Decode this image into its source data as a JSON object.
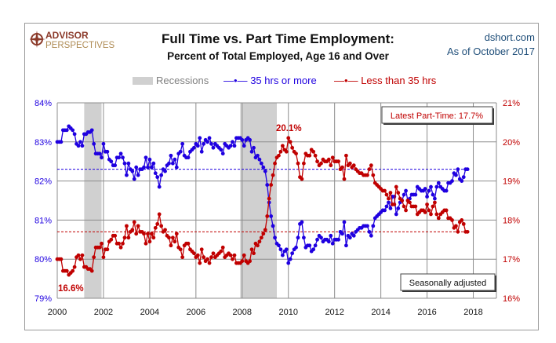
{
  "header": {
    "title": "Full Time vs. Part Time Employment:",
    "subtitle": "Percent of Total Employed, Age 16 and Over",
    "site": "dshort.com",
    "as_of": "As of October 2017",
    "logo_text": [
      "ADVISOR",
      "PERSPECTIVES"
    ]
  },
  "colors": {
    "full_time": "#1f00e0",
    "part_time": "#c00000",
    "recession": "#d0d0d0",
    "grid": "#8c8c8c"
  },
  "chart_data": {
    "type": "line",
    "x_start": "2000-01",
    "frequency": "monthly",
    "x_end": "2017-10",
    "xlim": [
      2000,
      2019
    ],
    "x_ticks": [
      "2000",
      "2002",
      "2004",
      "2006",
      "2008",
      "2010",
      "2012",
      "2014",
      "2016",
      "2018"
    ],
    "y_left": {
      "lim": [
        79,
        84
      ],
      "ticks": [
        "79%",
        "80%",
        "81%",
        "82%",
        "83%",
        "84%"
      ]
    },
    "y_right": {
      "lim": [
        16,
        21
      ],
      "ticks": [
        "16%",
        "17%",
        "18%",
        "19%",
        "20%",
        "21%"
      ]
    },
    "grid": true,
    "legend": {
      "placement": "top",
      "items": [
        "Recessions",
        "35 hrs or more",
        "Less than 35 hrs"
      ]
    },
    "recessions": [
      [
        "2001-03",
        "2001-11"
      ],
      [
        "2007-12",
        "2009-06"
      ]
    ],
    "series": [
      {
        "name": "35 hrs or more",
        "axis": "left",
        "values": [
          83.0,
          83.0,
          83.0,
          83.3,
          83.3,
          83.3,
          83.4,
          83.35,
          83.3,
          83.2,
          82.95,
          82.9,
          83.0,
          82.9,
          83.2,
          83.2,
          83.25,
          83.25,
          83.3,
          82.95,
          82.7,
          82.7,
          82.7,
          82.6,
          82.95,
          82.75,
          82.75,
          82.55,
          82.5,
          82.4,
          82.4,
          82.6,
          82.6,
          82.7,
          82.6,
          82.45,
          82.15,
          82.45,
          82.3,
          82.25,
          82.05,
          82.35,
          82.15,
          82.3,
          82.3,
          82.35,
          82.6,
          82.35,
          82.55,
          82.35,
          82.45,
          82.2,
          82.1,
          81.85,
          82.15,
          82.3,
          82.25,
          82.4,
          82.45,
          82.65,
          82.45,
          82.55,
          82.35,
          82.7,
          82.75,
          82.95,
          82.65,
          82.6,
          82.6,
          82.75,
          82.8,
          82.85,
          82.95,
          82.9,
          83.1,
          82.75,
          82.95,
          83.05,
          83.0,
          83.1,
          82.95,
          82.85,
          82.95,
          82.9,
          82.85,
          82.8,
          82.7,
          82.95,
          82.9,
          82.85,
          82.9,
          83.0,
          82.9,
          83.1,
          83.1,
          83.1,
          83.05,
          82.9,
          83.05,
          83.1,
          83.05,
          82.75,
          82.85,
          82.6,
          82.65,
          82.55,
          82.45,
          82.35,
          82.25,
          81.9,
          81.45,
          81.1,
          80.85,
          80.55,
          80.4,
          80.35,
          80.25,
          80.1,
          80.2,
          80.25,
          79.9,
          80.0,
          80.15,
          80.25,
          80.3,
          80.55,
          80.9,
          80.95,
          80.55,
          80.3,
          80.35,
          80.35,
          80.2,
          80.25,
          80.35,
          80.5,
          80.6,
          80.55,
          80.45,
          80.5,
          80.5,
          80.45,
          80.6,
          80.4,
          80.5,
          80.5,
          80.5,
          80.7,
          80.65,
          80.95,
          80.35,
          80.6,
          80.55,
          80.65,
          80.6,
          80.7,
          80.75,
          80.8,
          80.8,
          80.85,
          80.85,
          80.85,
          80.7,
          80.6,
          80.85,
          81.05,
          81.1,
          81.15,
          81.2,
          81.25,
          81.25,
          81.35,
          81.45,
          81.3,
          81.6,
          81.6,
          81.15,
          81.3,
          81.45,
          81.5,
          81.65,
          81.75,
          81.5,
          81.55,
          81.65,
          81.65,
          81.65,
          81.85,
          81.8,
          81.75,
          81.75,
          81.8,
          81.6,
          81.75,
          81.85,
          81.65,
          81.55,
          81.85,
          81.95,
          81.85,
          81.8,
          81.75,
          81.75,
          81.95,
          81.95,
          82.0,
          82.2,
          82.15,
          82.3,
          82.05,
          82.0,
          82.1,
          82.3,
          82.3
        ]
      },
      {
        "name": "Less than 35 hrs",
        "axis": "right",
        "values": [
          17.0,
          17.0,
          17.0,
          16.7,
          16.7,
          16.7,
          16.6,
          16.65,
          16.7,
          16.8,
          17.05,
          17.1,
          17.0,
          17.1,
          16.8,
          16.8,
          16.75,
          16.75,
          16.7,
          17.05,
          17.3,
          17.3,
          17.3,
          17.4,
          17.05,
          17.25,
          17.25,
          17.45,
          17.5,
          17.6,
          17.6,
          17.4,
          17.4,
          17.3,
          17.4,
          17.55,
          17.85,
          17.55,
          17.7,
          17.75,
          17.95,
          17.65,
          17.85,
          17.7,
          17.7,
          17.65,
          17.4,
          17.65,
          17.45,
          17.65,
          17.55,
          17.8,
          17.9,
          18.15,
          17.85,
          17.7,
          17.75,
          17.6,
          17.55,
          17.35,
          17.55,
          17.45,
          17.65,
          17.3,
          17.25,
          17.05,
          17.35,
          17.4,
          17.4,
          17.25,
          17.2,
          17.15,
          17.05,
          17.1,
          16.9,
          17.25,
          17.05,
          16.95,
          17.0,
          16.9,
          17.05,
          17.15,
          17.05,
          17.1,
          17.15,
          17.2,
          17.3,
          17.05,
          17.1,
          17.15,
          17.1,
          17.0,
          17.1,
          16.9,
          16.9,
          16.9,
          16.95,
          17.1,
          16.95,
          16.9,
          16.95,
          17.25,
          17.15,
          17.4,
          17.35,
          17.45,
          17.55,
          17.65,
          17.75,
          18.1,
          18.55,
          18.9,
          19.15,
          19.45,
          19.6,
          19.65,
          19.75,
          19.9,
          19.8,
          19.75,
          20.1,
          20.0,
          19.85,
          19.75,
          19.7,
          19.45,
          19.1,
          19.05,
          19.45,
          19.7,
          19.65,
          19.65,
          19.8,
          19.75,
          19.65,
          19.5,
          19.4,
          19.45,
          19.55,
          19.5,
          19.5,
          19.55,
          19.4,
          19.6,
          19.5,
          19.5,
          19.5,
          19.3,
          19.35,
          19.05,
          19.65,
          19.4,
          19.45,
          19.35,
          19.4,
          19.3,
          19.25,
          19.2,
          19.2,
          19.15,
          19.15,
          19.15,
          19.3,
          19.4,
          19.15,
          18.95,
          18.9,
          18.85,
          18.8,
          18.75,
          18.75,
          18.65,
          18.55,
          18.7,
          18.4,
          18.4,
          18.85,
          18.7,
          18.55,
          18.5,
          18.35,
          18.25,
          18.5,
          18.45,
          18.35,
          18.35,
          18.35,
          18.15,
          18.2,
          18.25,
          18.25,
          18.2,
          18.4,
          18.25,
          18.15,
          18.35,
          18.45,
          18.15,
          18.05,
          18.15,
          18.2,
          18.25,
          18.25,
          18.05,
          18.05,
          18.0,
          17.8,
          17.85,
          17.7,
          17.95,
          18.0,
          17.9,
          17.7,
          17.7
        ]
      }
    ],
    "reference_lines": [
      {
        "axis": "left",
        "value": 82.3
      },
      {
        "axis": "right",
        "value": 17.7
      }
    ],
    "annotations": {
      "max_label": "20.1%",
      "min_label": "16.6%",
      "latest": "Latest Part-Time: 17.7%",
      "note": "Seasonally  adjusted"
    }
  }
}
